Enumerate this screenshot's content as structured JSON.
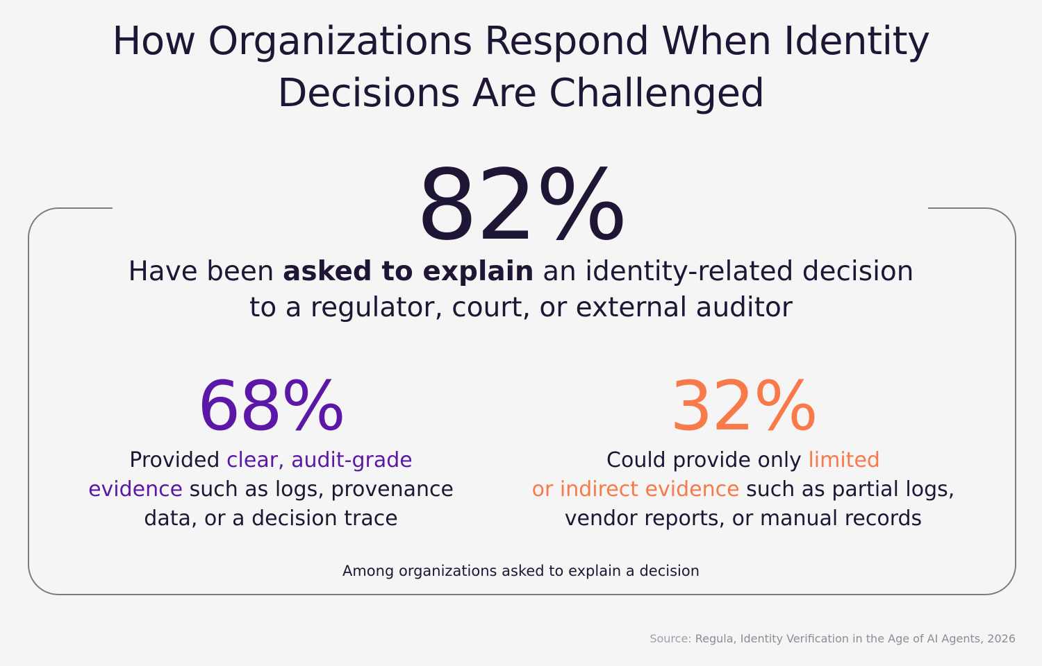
{
  "title": {
    "line1": "How Organizations Respond When Identity",
    "line2": "Decisions Are Challenged"
  },
  "hero": {
    "value": "82%",
    "text_before": "Have been ",
    "text_bold": "asked to explain",
    "text_after_line1": " an identity-related decision",
    "text_line2": "to a regulator, court, or external auditor"
  },
  "stat_left": {
    "value": "68%",
    "text_before": "Provided ",
    "highlight_line1": "clear, audit-grade",
    "highlight_line2": "evidence",
    "text_after_line2": " such as logs, provenance",
    "text_line3": "data, or a decision trace",
    "color": "#5b17a6"
  },
  "stat_right": {
    "value": "32%",
    "text_before": "Could provide only ",
    "highlight_line1": "limited",
    "highlight_line2": "or indirect evidence",
    "text_after_line2": " such as partial logs,",
    "text_line3": "vendor reports, or manual records",
    "color": "#f87a4b"
  },
  "footnote": "Among organizations asked to explain a decision",
  "source": {
    "label": "Source:",
    "text": " Regula, Identity Verification in the Age of AI Agents, 2026"
  },
  "colors": {
    "background": "#f5f5f5",
    "text": "#1f1535",
    "frame": "#7d7a88"
  }
}
